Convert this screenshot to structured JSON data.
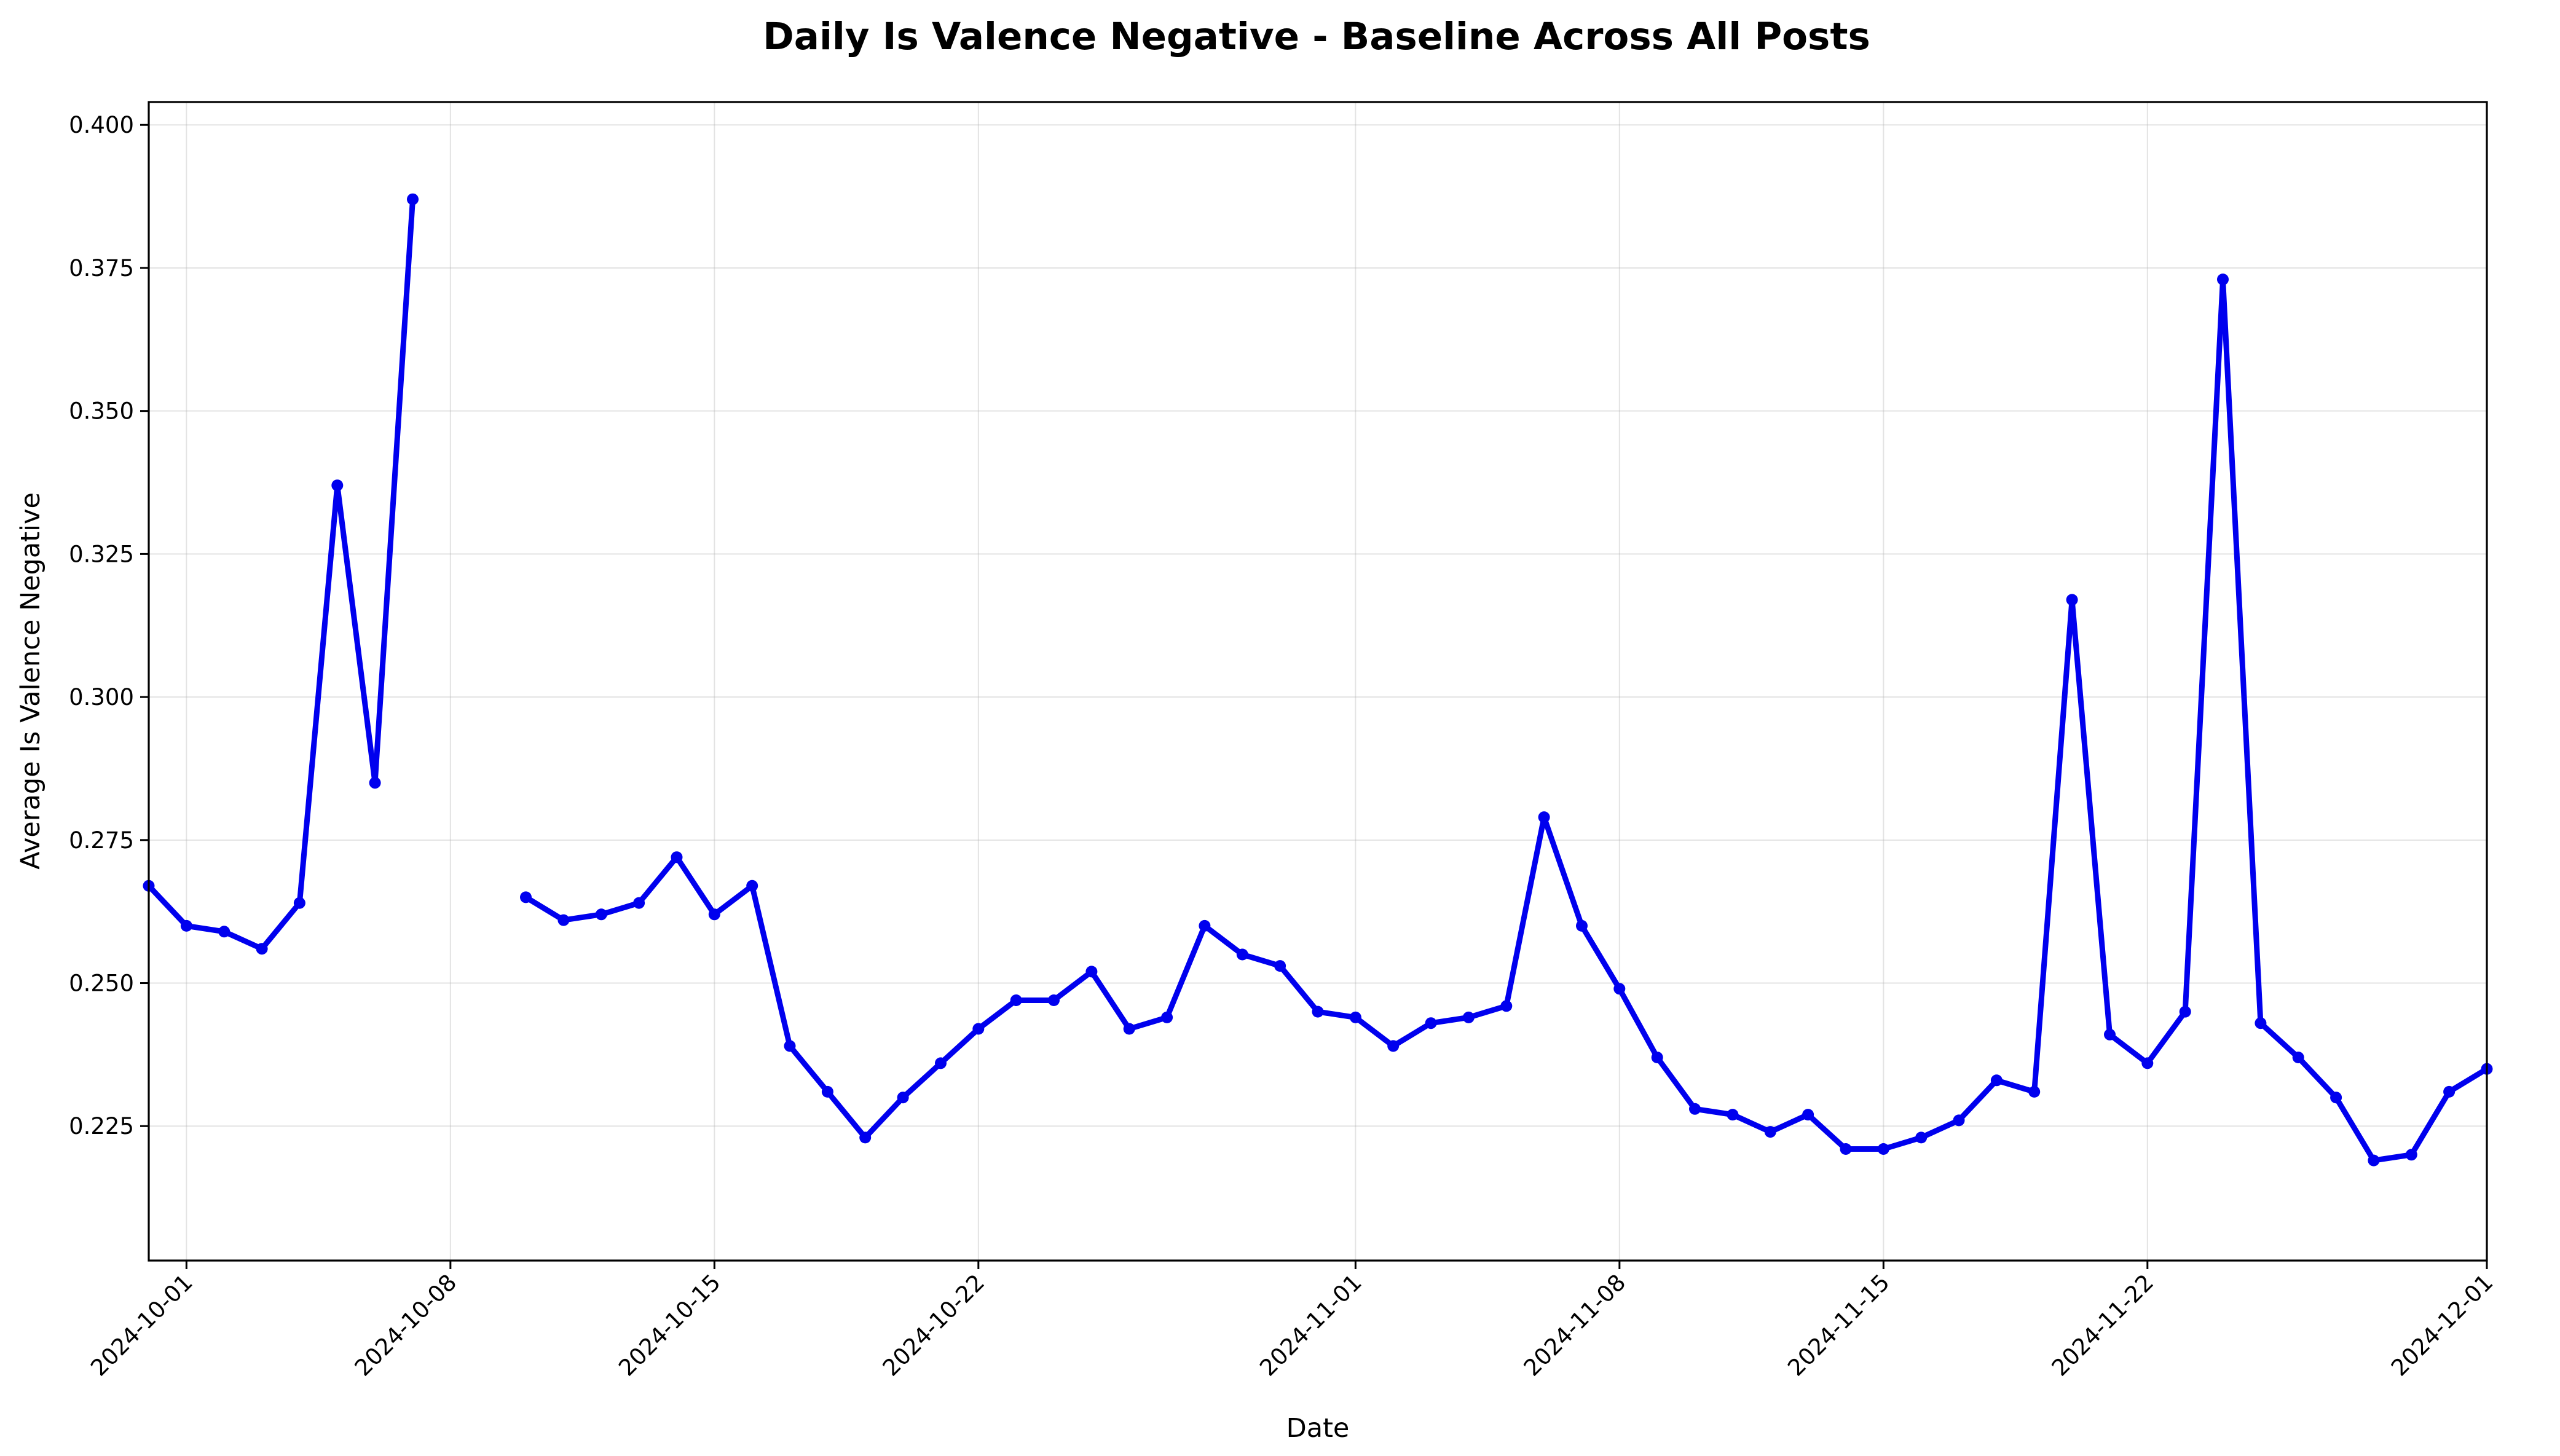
{
  "chart_data": {
    "type": "line",
    "title": "Daily Is Valence Negative - Baseline Across All Posts",
    "xlabel": "Date",
    "ylabel": "Average Is Valence Negative",
    "xlim": [
      "2024-09-30",
      "2024-12-01"
    ],
    "ylim": [
      0.2015,
      0.404
    ],
    "x_ticks": [
      "2024-10-01",
      "2024-10-08",
      "2024-10-15",
      "2024-10-22",
      "2024-11-01",
      "2024-11-08",
      "2024-11-15",
      "2024-11-22",
      "2024-12-01"
    ],
    "y_ticks": [
      "0.225",
      "0.250",
      "0.275",
      "0.300",
      "0.325",
      "0.350",
      "0.375",
      "0.400"
    ],
    "grid": true,
    "line_color": "#0000ee",
    "series": [
      {
        "name": "",
        "points": [
          [
            "2024-09-30",
            0.267
          ],
          [
            "2024-10-01",
            0.26
          ],
          [
            "2024-10-02",
            0.259
          ],
          [
            "2024-10-03",
            0.256
          ],
          [
            "2024-10-04",
            0.264
          ],
          [
            "2024-10-05",
            0.337
          ],
          [
            "2024-10-06",
            0.285
          ],
          [
            "2024-10-07",
            0.387
          ],
          [
            "2024-10-08",
            null
          ],
          [
            "2024-10-09",
            null
          ],
          [
            "2024-10-10",
            0.265
          ],
          [
            "2024-10-11",
            0.261
          ],
          [
            "2024-10-12",
            0.262
          ],
          [
            "2024-10-13",
            0.264
          ],
          [
            "2024-10-14",
            0.272
          ],
          [
            "2024-10-15",
            0.262
          ],
          [
            "2024-10-16",
            0.267
          ],
          [
            "2024-10-17",
            0.239
          ],
          [
            "2024-10-18",
            0.231
          ],
          [
            "2024-10-19",
            0.223
          ],
          [
            "2024-10-20",
            0.23
          ],
          [
            "2024-10-21",
            0.236
          ],
          [
            "2024-10-22",
            0.242
          ],
          [
            "2024-10-23",
            0.247
          ],
          [
            "2024-10-24",
            0.247
          ],
          [
            "2024-10-25",
            0.252
          ],
          [
            "2024-10-26",
            0.242
          ],
          [
            "2024-10-27",
            0.244
          ],
          [
            "2024-10-28",
            0.26
          ],
          [
            "2024-10-29",
            0.255
          ],
          [
            "2024-10-30",
            0.253
          ],
          [
            "2024-10-31",
            0.245
          ],
          [
            "2024-11-01",
            0.244
          ],
          [
            "2024-11-02",
            0.239
          ],
          [
            "2024-11-03",
            0.243
          ],
          [
            "2024-11-04",
            0.244
          ],
          [
            "2024-11-05",
            0.246
          ],
          [
            "2024-11-06",
            0.279
          ],
          [
            "2024-11-07",
            0.26
          ],
          [
            "2024-11-08",
            0.249
          ],
          [
            "2024-11-09",
            0.237
          ],
          [
            "2024-11-10",
            0.228
          ],
          [
            "2024-11-11",
            0.227
          ],
          [
            "2024-11-12",
            0.224
          ],
          [
            "2024-11-13",
            0.227
          ],
          [
            "2024-11-14",
            0.221
          ],
          [
            "2024-11-15",
            0.221
          ],
          [
            "2024-11-16",
            0.223
          ],
          [
            "2024-11-17",
            0.226
          ],
          [
            "2024-11-18",
            0.233
          ],
          [
            "2024-11-19",
            0.231
          ],
          [
            "2024-11-20",
            0.317
          ],
          [
            "2024-11-21",
            0.241
          ],
          [
            "2024-11-22",
            0.236
          ],
          [
            "2024-11-23",
            0.245
          ],
          [
            "2024-11-24",
            0.373
          ],
          [
            "2024-11-25",
            0.243
          ],
          [
            "2024-11-26",
            0.237
          ],
          [
            "2024-11-27",
            0.23
          ],
          [
            "2024-11-28",
            0.219
          ],
          [
            "2024-11-29",
            0.22
          ],
          [
            "2024-11-30",
            0.231
          ],
          [
            "2024-12-01",
            0.235
          ]
        ]
      }
    ]
  }
}
